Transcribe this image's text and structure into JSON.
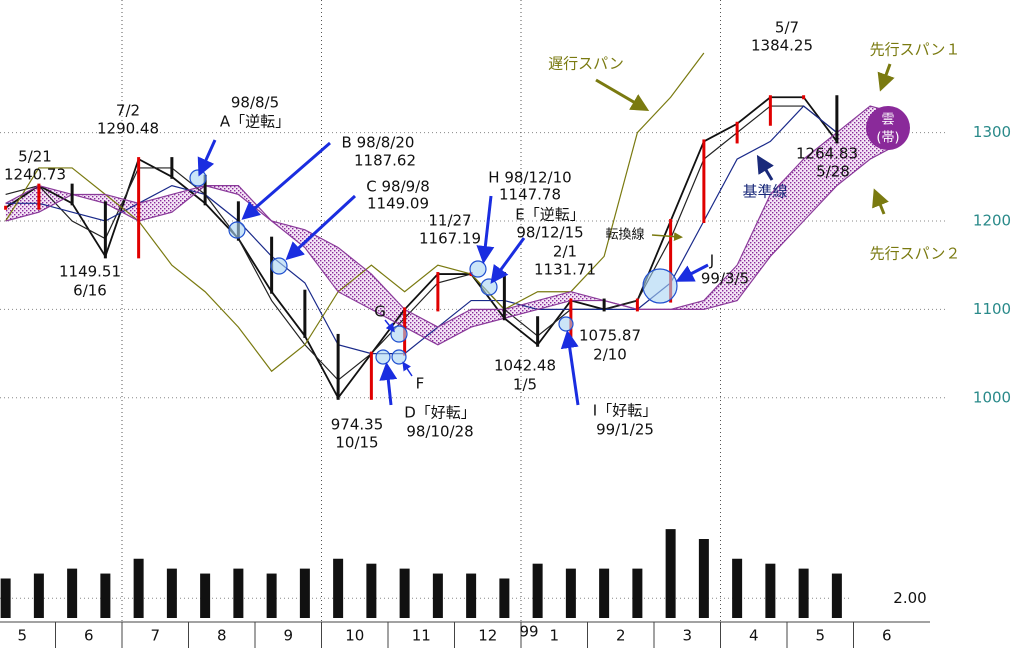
{
  "chart_data": {
    "type": "line",
    "categories": [
      "5",
      null,
      "6",
      null,
      "7",
      null,
      "8",
      null,
      "9",
      null,
      "10",
      null,
      "11",
      null,
      "12",
      null,
      "1",
      null,
      "2",
      null,
      "3",
      null,
      "4",
      null,
      "5",
      null,
      "6",
      null
    ],
    "year_label": "99",
    "ylim": [
      950,
      1450
    ],
    "yticks": [
      1000,
      1100,
      1200,
      1300
    ],
    "grid": true,
    "series": [
      {
        "color": "#111111",
        "values": [
          1215,
          1240,
          1220,
          1160,
          1270,
          1250,
          1220,
          1180,
          1120,
          1070,
          1000,
          1050,
          1100,
          1140,
          1140,
          1090,
          1060,
          1110,
          1100,
          1110,
          1200,
          1290,
          1310,
          1340,
          1340,
          1290,
          null,
          null
        ]
      },
      {
        "name": "転換線",
        "color": "#222222",
        "values": [
          1230,
          1240,
          1200,
          1180,
          1260,
          1260,
          1230,
          1180,
          1110,
          1060,
          1020,
          1050,
          1090,
          1130,
          1140,
          1100,
          1070,
          1100,
          1100,
          1110,
          1180,
          1270,
          1300,
          1330,
          1330,
          1300,
          null,
          null
        ]
      },
      {
        "name": "基準線",
        "color": "#1a2a8a",
        "values": [
          1220,
          1220,
          1210,
          1200,
          1220,
          1240,
          1230,
          1200,
          1160,
          1130,
          1060,
          1050,
          1050,
          1080,
          1110,
          1110,
          1100,
          1100,
          1100,
          1100,
          1130,
          1200,
          1270,
          1290,
          1330,
          1300,
          null,
          null
        ]
      },
      {
        "name": "遅行スパン",
        "color": "#7a7a10",
        "values": [
          1200,
          1260,
          1260,
          1230,
          1200,
          1150,
          1120,
          1080,
          1030,
          1060,
          1120,
          1150,
          1120,
          1150,
          1140,
          1100,
          1120,
          1120,
          1160,
          1300,
          1340,
          1390,
          null,
          null,
          null,
          null,
          null,
          null
        ]
      },
      {
        "name": "先行スパン１",
        "color": "#8a3a9a",
        "values": [
          1220,
          1240,
          1230,
          1220,
          1200,
          1210,
          1240,
          1230,
          1200,
          1170,
          1120,
          1100,
          1080,
          1060,
          1080,
          1090,
          1100,
          1110,
          1110,
          1100,
          1100,
          1110,
          1150,
          1230,
          1270,
          1300,
          1330,
          1320
        ]
      },
      {
        "name": "先行スパン２",
        "color": "#8a3a9a",
        "values": [
          1200,
          1210,
          1230,
          1230,
          1220,
          1230,
          1240,
          1240,
          1200,
          1190,
          1170,
          1140,
          1100,
          1080,
          1100,
          1100,
          1110,
          1120,
          1110,
          1100,
          1100,
          1100,
          1110,
          1160,
          1200,
          1240,
          1270,
          1290
        ]
      }
    ],
    "volume": {
      "color": "#111111",
      "ylim": [
        0,
        16
      ],
      "yticks": [
        {
          "value": 2,
          "label": "2.00"
        }
      ],
      "values": [
        4,
        4.5,
        5,
        4.5,
        6,
        5,
        4.5,
        5,
        4.5,
        5,
        6,
        5.5,
        5,
        4.5,
        4.5,
        4,
        5.5,
        5,
        5,
        5,
        9,
        8,
        6,
        5.5,
        5,
        4.5,
        null,
        null
      ]
    },
    "annotations": [
      "5/21",
      "1240.73",
      "7/2",
      "1290.48",
      "1149.51",
      "6/16",
      "98/8/5",
      "A「逆転」",
      "B 98/8/20",
      "1187.62",
      "C 98/9/8",
      "1149.09",
      "11/27",
      "1167.19",
      "H 98/12/10",
      "1147.78",
      "E「逆転」",
      "98/12/15",
      "2/1",
      "1131.71",
      "G",
      "F",
      "974.35",
      "10/15",
      "D「好転」",
      "98/10/28",
      "1042.48",
      "1/5",
      "1075.87",
      "2/10",
      "I「好転」",
      "99/1/25",
      "J",
      "99/3/5",
      "5/7",
      "1384.25",
      "1264.83",
      "5/28",
      "雲",
      "(帯)"
    ]
  }
}
